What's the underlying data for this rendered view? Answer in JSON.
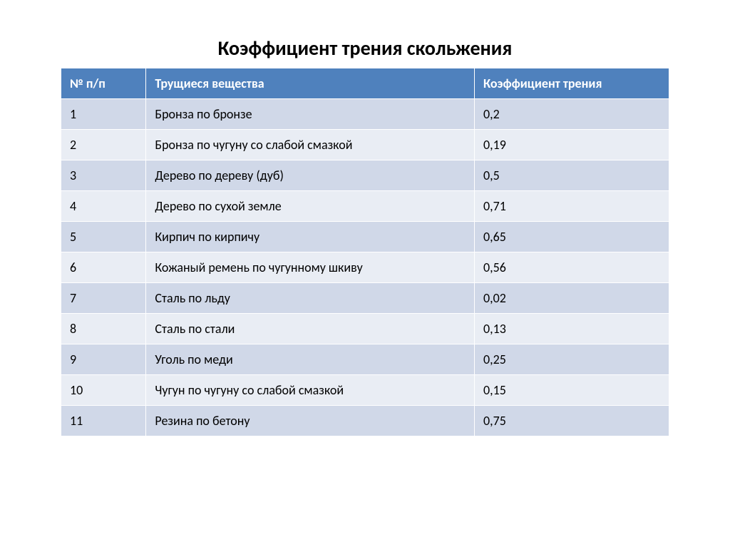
{
  "title": "Коэффициент трения скольжения",
  "table": {
    "columns": [
      {
        "label": "№ п/п",
        "width": "14%"
      },
      {
        "label": "Трущиеся вещества",
        "width": "54%"
      },
      {
        "label": "Коэффициент трения",
        "width": "32%"
      }
    ],
    "rows": [
      {
        "num": "1",
        "material": "Бронза по бронзе",
        "coef": "0,2"
      },
      {
        "num": "2",
        "material": "Бронза по чугуну со слабой смазкой",
        "coef": "0,19"
      },
      {
        "num": "3",
        "material": "Дерево по дереву (дуб)",
        "coef": "0,5"
      },
      {
        "num": "4",
        "material": "Дерево по сухой земле",
        "coef": "0,71"
      },
      {
        "num": "5",
        "material": "Кирпич по кирпичу",
        "coef": "0,65"
      },
      {
        "num": "6",
        "material": "Кожаный ремень по чугунному шкиву",
        "coef": "0,56"
      },
      {
        "num": "7",
        "material": "Сталь по льду",
        "coef": "0,02"
      },
      {
        "num": "8",
        "material": "Сталь по стали",
        "coef": "0,13"
      },
      {
        "num": "9",
        "material": "Уголь по меди",
        "coef": "0,25"
      },
      {
        "num": "10",
        "material": "Чугун по чугуну со слабой смазкой",
        "coef": "0,15"
      },
      {
        "num": "11",
        "material": "Резина по бетону",
        "coef": "0,75"
      }
    ],
    "header_bg_color": "#4f81bd",
    "header_text_color": "#ffffff",
    "row_odd_bg_color": "#d0d8e8",
    "row_even_bg_color": "#e9edf4",
    "border_color": "#ffffff",
    "cell_text_color": "#000000",
    "title_fontsize": 28,
    "cell_fontsize": 18
  },
  "background_color": "#ffffff"
}
